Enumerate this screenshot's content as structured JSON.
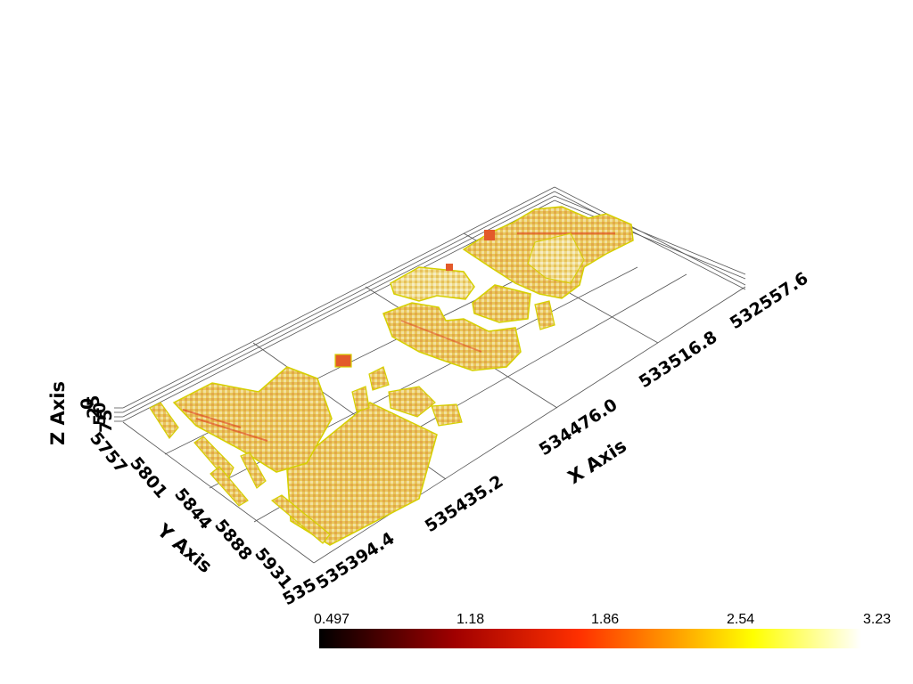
{
  "axes": {
    "x_title": "X Axis",
    "y_title": "Y Axis",
    "z_title": "Z Axis",
    "x_ticks": [
      "535394.4",
      "535435.2",
      "534476.0",
      "533516.8",
      "532557.6"
    ],
    "y_ticks": [
      "5757",
      "5801",
      "5844",
      "5888",
      "5931",
      "535"
    ],
    "z_ticks": [
      "0",
      "25",
      "50",
      "75"
    ]
  },
  "colorbar": {
    "ticks": [
      "0.497",
      "1.18",
      "1.86",
      "2.54",
      "3.23"
    ],
    "colormap": "hot",
    "min": 0.497,
    "max": 3.23,
    "colors": [
      "#000000",
      "#8b0000",
      "#ff2a00",
      "#ff9a00",
      "#ffff00",
      "#ffffff"
    ]
  },
  "volume": {
    "fill_light": "#f2e6a0",
    "fill_mid": "#e8c04a",
    "fill_dark": "#d98a2a",
    "accent_red": "#e04020",
    "edge_yellow": "#e8e000"
  }
}
